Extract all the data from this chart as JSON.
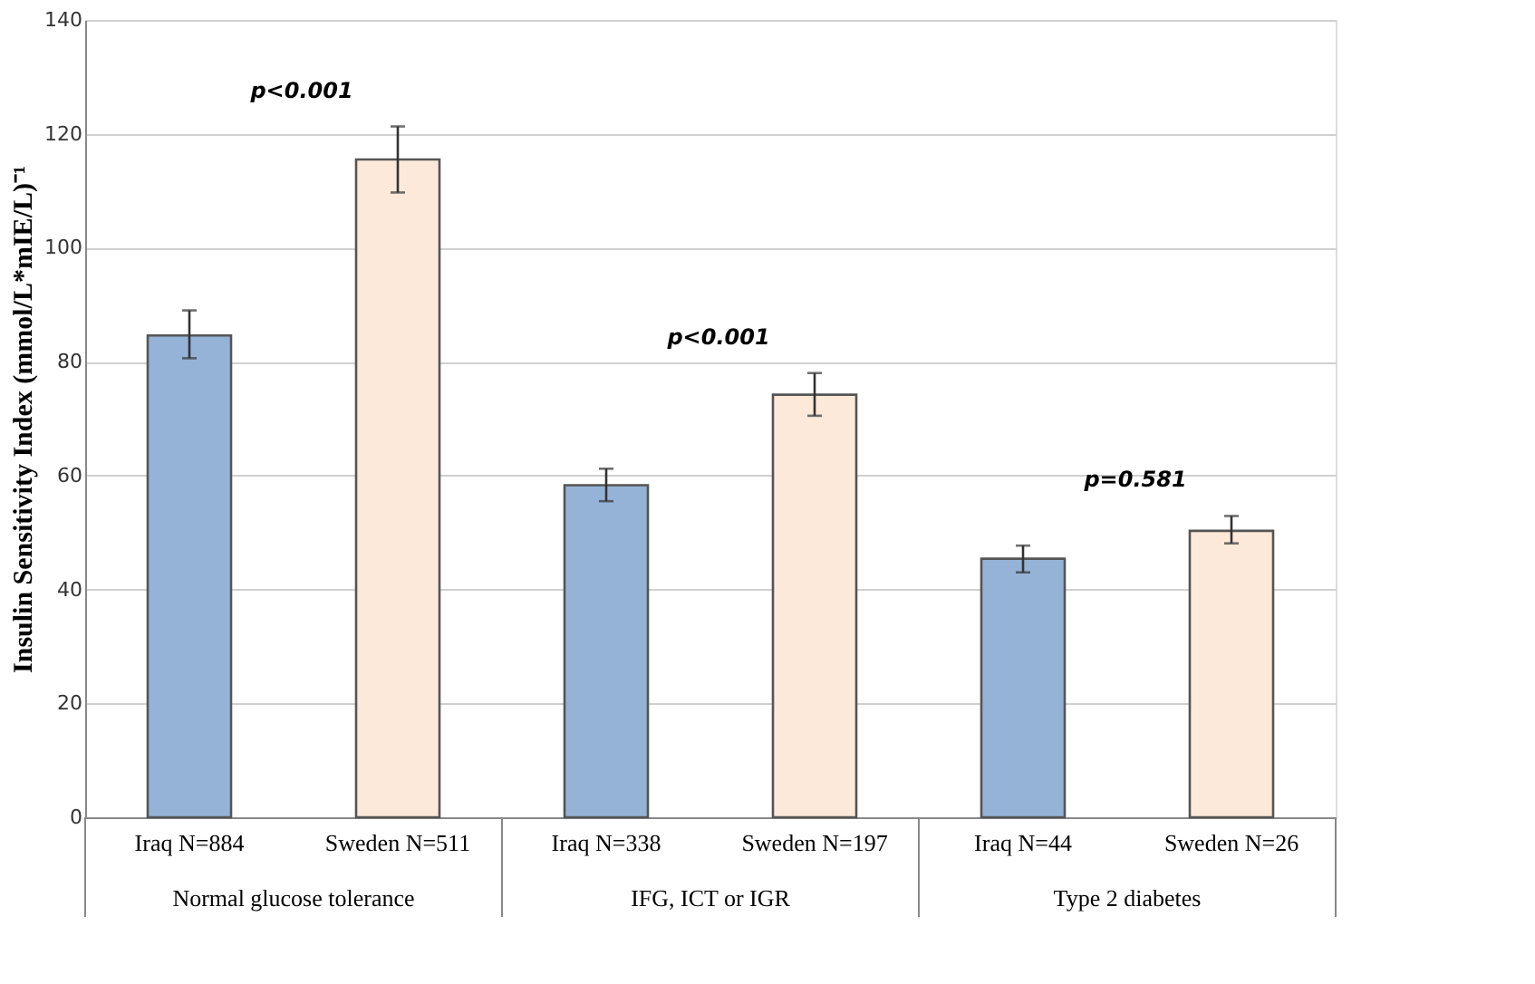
{
  "chart_data": {
    "type": "bar",
    "ylabel": "Insulin Sensitivity Index (mmol/L*mIE/L)⁻¹",
    "categories": [
      "Iraq N=884",
      "Sweden N=511",
      "Iraq N=338",
      "Sweden N=197",
      "Iraq N=44",
      "Sweden N=26"
    ],
    "values": [
      84.6,
      115.5,
      58.3,
      74.2,
      45.4,
      50.3
    ],
    "colors": [
      "#95b3d7",
      "#fde9d9",
      "#95b3d7",
      "#fde9d9",
      "#95b3d7",
      "#fde9d9"
    ],
    "errors": [
      [
        80.6,
        89.0
      ],
      [
        109.7,
        121.3
      ],
      [
        55.5,
        61.2
      ],
      [
        70.5,
        78.0
      ],
      [
        43.0,
        47.7
      ],
      [
        48.1,
        52.9
      ]
    ],
    "ylim": [
      0,
      140
    ],
    "yticks": [
      0,
      20,
      40,
      60,
      80,
      100,
      120,
      140
    ],
    "grid": "y",
    "annotations": [
      "p<0.001",
      "p<0.001",
      "p=0.581",
      "Normal glucose tolerance",
      "IFG, ICT or IGR",
      "Type 2 diabetes"
    ]
  }
}
